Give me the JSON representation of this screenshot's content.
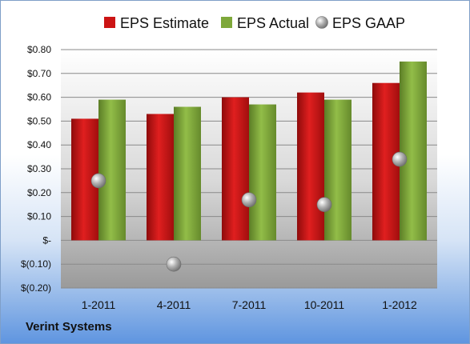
{
  "chart_data": {
    "type": "bar",
    "title": "",
    "xlabel": "",
    "ylabel": "",
    "categories": [
      "1-2011",
      "4-2011",
      "7-2011",
      "10-2011",
      "1-2012"
    ],
    "series": [
      {
        "name": "EPS Estimate",
        "kind": "bar",
        "color": "#cc1414",
        "values": [
          0.51,
          0.53,
          0.6,
          0.62,
          0.66
        ]
      },
      {
        "name": "EPS Actual",
        "kind": "bar",
        "color": "#7ea83a",
        "values": [
          0.59,
          0.56,
          0.57,
          0.59,
          0.75
        ]
      },
      {
        "name": "EPS GAAP",
        "kind": "marker",
        "color": "#9a9a9a",
        "values": [
          0.25,
          -0.1,
          0.17,
          0.15,
          0.34
        ]
      }
    ],
    "ylim": [
      -0.2,
      0.8
    ],
    "yticks": [
      -0.2,
      -0.1,
      0,
      0.1,
      0.2,
      0.3,
      0.4,
      0.5,
      0.6,
      0.7,
      0.8
    ],
    "ytick_labels": [
      "$(0.20)",
      "$(0.10)",
      "$-",
      "$0.10",
      "$0.20",
      "$0.30",
      "$0.40",
      "$0.50",
      "$0.60",
      "$0.70",
      "$0.80"
    ],
    "grid": true,
    "legend_position": "top"
  },
  "footer": {
    "company": "Verint Systems"
  }
}
